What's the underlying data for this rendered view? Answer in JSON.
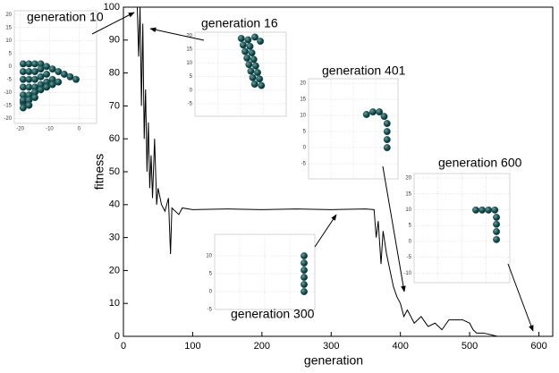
{
  "chart_data": [
    {
      "type": "line",
      "xlabel": "generation",
      "ylabel": "fitness",
      "color": "#000000",
      "x": [
        20,
        22,
        24,
        26,
        28,
        30,
        32,
        34,
        36,
        38,
        40,
        42,
        45,
        48,
        50,
        55,
        60,
        65,
        68,
        70,
        80,
        85,
        100,
        150,
        200,
        250,
        300,
        350,
        362,
        365,
        368,
        372,
        375,
        380,
        385,
        390,
        395,
        400,
        405,
        410,
        420,
        430,
        440,
        450,
        460,
        470,
        480,
        490,
        500,
        505,
        510,
        520,
        530,
        540,
        600
      ],
      "values": [
        100,
        85,
        100,
        70,
        95,
        60,
        75,
        50,
        65,
        45,
        55,
        42,
        60,
        40,
        45,
        40,
        38,
        42,
        25,
        39,
        37,
        39,
        38.5,
        38.7,
        38.5,
        38.7,
        38.5,
        38.7,
        38.5,
        30,
        35,
        22,
        32,
        25,
        20,
        15,
        12,
        10,
        6,
        8,
        4,
        6,
        3,
        4,
        2,
        5,
        5,
        5,
        4,
        2,
        1,
        1,
        0.5,
        0,
        0
      ],
      "xlim": [
        0,
        620
      ],
      "ylim": [
        0,
        100
      ],
      "xticks": [
        0,
        100,
        200,
        300,
        400,
        500,
        600
      ],
      "yticks": [
        0,
        10,
        20,
        30,
        40,
        50,
        60,
        70,
        80,
        90,
        100
      ]
    },
    {
      "type": "scatter",
      "title": "generation 10",
      "color": "#1f5656",
      "x": [
        -19,
        -17,
        -15,
        -13,
        -11,
        -9,
        -7,
        -5,
        -3,
        -1,
        -19,
        -17,
        -15,
        -19,
        -17,
        -15,
        -13,
        -19,
        -17,
        -15,
        -13,
        -11,
        -19,
        -17,
        -15,
        -13,
        -11,
        -9,
        -19,
        -17,
        -15,
        -13,
        -11,
        -9,
        -7,
        -19,
        -17,
        -15,
        -19,
        -17
      ],
      "y": [
        1,
        1,
        1,
        1,
        0,
        -1,
        -2,
        -3,
        -4,
        -5,
        -14,
        -12,
        -10,
        -2,
        -2,
        -2,
        -1,
        -5,
        -5,
        -5,
        -4,
        -3,
        -8,
        -8,
        -8,
        -7,
        -6,
        -5,
        -11,
        -11,
        -10,
        -9,
        -8,
        -7,
        -6,
        -13,
        -13,
        -12,
        -16,
        -15
      ],
      "xlim": [
        -22,
        6
      ],
      "ylim": [
        -22,
        21.5
      ],
      "xticks": [
        -20,
        -10,
        0
      ],
      "yticks": [
        20,
        15,
        10,
        5,
        0,
        -5,
        -10,
        -15,
        -20
      ]
    },
    {
      "type": "scatter",
      "title": "generation 16",
      "color": "#1f5656",
      "x": [
        17,
        17.7,
        18.4,
        19.1,
        19.8,
        20.5,
        21.2,
        21.9,
        19.5,
        20.2,
        20.9,
        21.6,
        22.3,
        23,
        23.7,
        24.4,
        22,
        24
      ],
      "y": [
        19,
        16.6,
        14.2,
        11.8,
        9.4,
        7,
        4.6,
        2.2,
        18.5,
        16.1,
        13.7,
        11.3,
        8.9,
        6.5,
        4.1,
        1.7,
        19.5,
        18
      ],
      "xlim": [
        0,
        33.5
      ],
      "ylim": [
        -9.6,
        21.3
      ],
      "yticks": [
        20,
        15,
        10,
        5,
        0,
        -5
      ]
    },
    {
      "type": "scatter",
      "title": "generation 401",
      "color": "#1f5656",
      "x": [
        18,
        20,
        22,
        23.5,
        24.4,
        24.4,
        24.4,
        24.4
      ],
      "y": [
        10.3,
        11.1,
        11.1,
        9.7,
        7.5,
        5,
        2.5,
        0
      ],
      "xlim": [
        0,
        27.8
      ],
      "ylim": [
        -9.7,
        21.4
      ],
      "yticks": [
        20,
        15,
        10,
        5,
        0,
        -5
      ]
    },
    {
      "type": "scatter",
      "title": "generation 600",
      "color": "#1f5656",
      "x": [
        19.4,
        21.4,
        23.4,
        25.4,
        25.9,
        25.9,
        25.9,
        25.9
      ],
      "y": [
        9.9,
        9.9,
        9.9,
        9.9,
        7.6,
        5.4,
        3.1,
        0.6
      ],
      "xlim": [
        0,
        30.1
      ],
      "ylim": [
        -13,
        21.4
      ],
      "yticks": [
        20,
        15,
        10,
        5,
        0,
        -5,
        -10
      ]
    },
    {
      "type": "scatter",
      "title": "generation 300",
      "color": "#1f5656",
      "x": [
        25,
        25,
        25,
        25,
        25,
        25
      ],
      "y": [
        10,
        8,
        6,
        4,
        2,
        0
      ],
      "xlim": [
        0,
        28
      ],
      "ylim": [
        -5,
        16
      ],
      "yticks": [
        10,
        5,
        0,
        -5
      ]
    }
  ]
}
